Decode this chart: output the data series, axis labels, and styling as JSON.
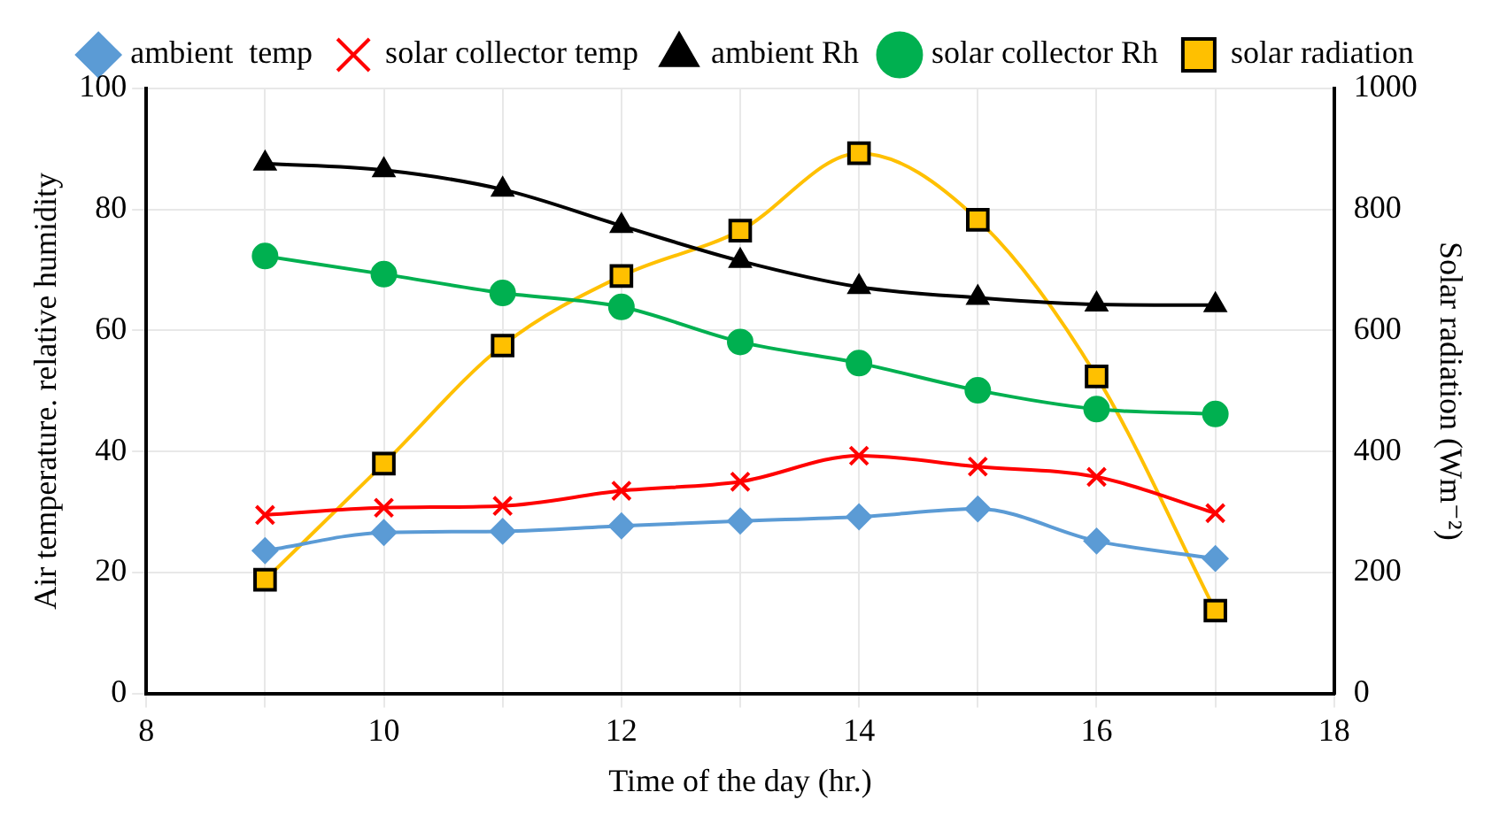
{
  "chart_data": {
    "type": "line",
    "xlabel": "Time of the day (hr.)",
    "ylabel": "Air temperature. relative humidity",
    "y2label": "Solar radiation (Wm⁻²)",
    "x": [
      9,
      10,
      11,
      12,
      13,
      14,
      15,
      16,
      17
    ],
    "xlim": [
      8,
      18
    ],
    "xticks": [
      8,
      {
        "value": 9,
        "label": null
      },
      10,
      {
        "value": 11,
        "label": null
      },
      12,
      {
        "value": 13,
        "label": null
      },
      14,
      {
        "value": 15,
        "label": null
      },
      16,
      {
        "value": 17,
        "label": null
      },
      18
    ],
    "ylim": [
      0,
      100
    ],
    "yticks": [
      0,
      20,
      40,
      60,
      80,
      100
    ],
    "y2lim": [
      0,
      1000
    ],
    "y2ticks": [
      0,
      200,
      400,
      600,
      800,
      1000
    ],
    "grid": true,
    "legend": "top",
    "series": [
      {
        "name": "ambient  temp",
        "color": "#5b9bd5",
        "marker": "diamond",
        "values": [
          23.6,
          26.6,
          26.8,
          27.7,
          28.5,
          29.2,
          30.5,
          25.2,
          22.3
        ]
      },
      {
        "name": "solar collector temp",
        "color": "#ff0000",
        "marker": "cross",
        "values": [
          29.5,
          30.7,
          31,
          33.5,
          35,
          39.3,
          37.5,
          35.8,
          29.8
        ]
      },
      {
        "name": "ambient Rh",
        "color": "#000000",
        "marker": "triangle",
        "values": [
          87.6,
          86.5,
          83.3,
          77.3,
          71.5,
          67.2,
          65.4,
          64.3,
          64.2
        ]
      },
      {
        "name": "solar collector Rh",
        "color": "#00b050",
        "marker": "circle",
        "values": [
          72.3,
          69.3,
          66.2,
          63.9,
          58.1,
          54.6,
          50.1,
          47,
          46.2
        ]
      },
      {
        "name": "solar radiation",
        "color": "#ffc000",
        "marker": "square",
        "axis": "y2",
        "values": [
          188,
          380,
          575,
          690,
          765,
          893,
          783,
          524,
          137
        ]
      }
    ]
  }
}
